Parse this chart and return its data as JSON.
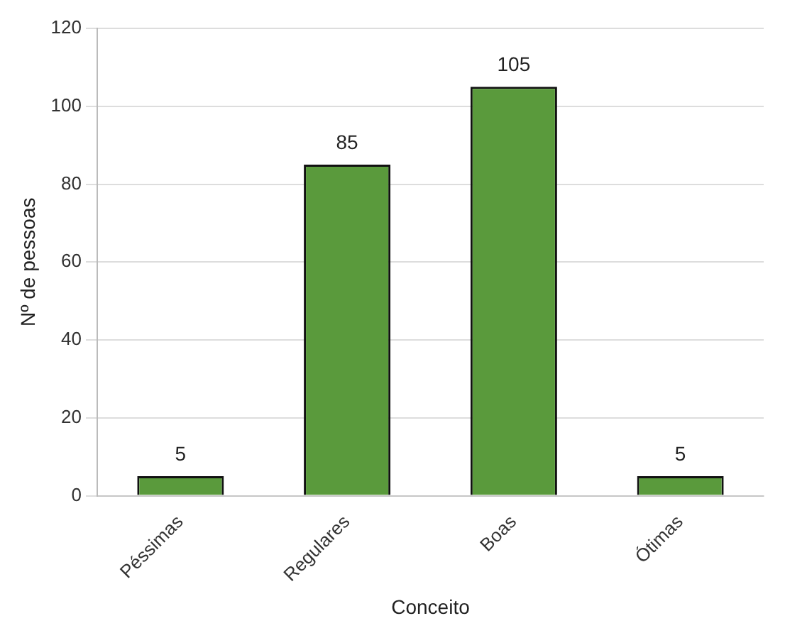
{
  "chart_data": {
    "type": "bar",
    "xlabel": "Conceito",
    "ylabel": "Nº de pessoas",
    "categories": [
      "Péssimas",
      "Regulares",
      "Boas",
      "Ótimas"
    ],
    "values": [
      5,
      85,
      105,
      5
    ],
    "color": "#5a9a3c",
    "ylim": [
      0,
      120
    ],
    "yticks": [
      0,
      20,
      40,
      60,
      80,
      100,
      120
    ],
    "grid": "y",
    "data_labels": true
  }
}
